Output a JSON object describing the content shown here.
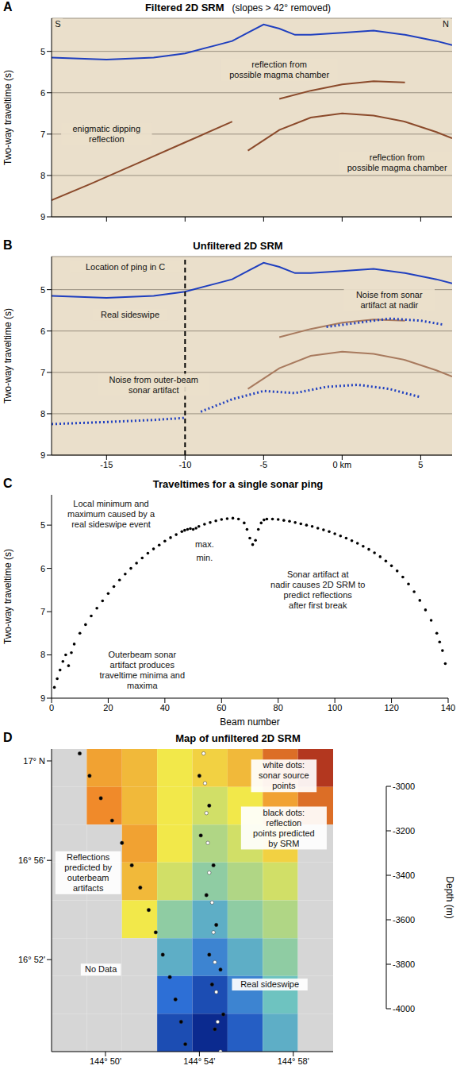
{
  "chart_data": [
    {
      "panel": "A",
      "type": "line",
      "title": "Filtered 2D SRM",
      "subtitle": "(slopes > 42° removed)",
      "y_label": "Two-way traveltime (s)",
      "xlim": [
        -18.5,
        7
      ],
      "xticks": [
        -15,
        -10,
        -5,
        0,
        5
      ],
      "ylim": [
        4.2,
        9
      ],
      "yticks": [
        5,
        6,
        7,
        8,
        9
      ],
      "tick_labels": "y",
      "grid": true,
      "series": [
        {
          "color": "#1f3fbf",
          "line_style": "solid",
          "x": [
            -18.5,
            -15,
            -12,
            -10,
            -8,
            -7,
            -6,
            -5,
            -4,
            -3,
            -2,
            0,
            2,
            4,
            6,
            7
          ],
          "values": [
            5.15,
            5.2,
            5.15,
            5.05,
            4.85,
            4.75,
            4.55,
            4.35,
            4.45,
            4.6,
            4.6,
            4.55,
            4.5,
            4.6,
            4.75,
            4.85
          ]
        },
        {
          "color": "#8b4a2b",
          "line_style": "solid",
          "x": [
            -4,
            -2,
            0,
            2,
            4
          ],
          "values": [
            6.15,
            5.95,
            5.8,
            5.72,
            5.75
          ]
        },
        {
          "color": "#8b4a2b",
          "line_style": "solid",
          "x": [
            -6,
            -4,
            -2,
            0,
            2,
            4,
            6,
            7
          ],
          "values": [
            7.4,
            6.9,
            6.6,
            6.5,
            6.55,
            6.7,
            6.95,
            7.1
          ]
        },
        {
          "color": "#8b4a2b",
          "line_style": "solid",
          "x": [
            -18.5,
            -16,
            -13,
            -10,
            -7
          ],
          "values": [
            8.6,
            8.2,
            7.7,
            7.2,
            6.7
          ]
        }
      ],
      "annotations": [
        {
          "text": "S",
          "x": -18.1,
          "y": 4.35
        },
        {
          "text": "N",
          "x": 6.6,
          "y": 4.35
        },
        {
          "text": "reflection from possible magma chamber",
          "x": -4,
          "y": 5.45
        },
        {
          "text": "reflection from possible magma chamber",
          "x": 3.5,
          "y": 7.7
        },
        {
          "text": "enigmatic dipping reflection",
          "x": -15,
          "y": 7.0
        }
      ]
    },
    {
      "panel": "B",
      "type": "line",
      "title": "Unfiltered 2D SRM",
      "y_label": "Two-way traveltime (s)",
      "xlim": [
        -18.5,
        7
      ],
      "xticks": [
        -15,
        -10,
        -5,
        {
          "value": 0,
          "label": "0 km"
        },
        5
      ],
      "ylim": [
        4.2,
        9
      ],
      "yticks": [
        5,
        6,
        7,
        8,
        9
      ],
      "grid": true,
      "reference_x": -10,
      "series": [
        {
          "color": "#1f3fbf",
          "line_style": "solid",
          "x": [
            -18.5,
            -15,
            -12,
            -10,
            -8,
            -7,
            -6,
            -5,
            -4,
            -3,
            -2,
            0,
            2,
            4,
            6,
            7
          ],
          "values": [
            5.15,
            5.2,
            5.15,
            5.05,
            4.85,
            4.75,
            4.55,
            4.35,
            4.45,
            4.6,
            4.6,
            4.55,
            4.5,
            4.6,
            4.75,
            4.85
          ]
        },
        {
          "color": "#a87a5e",
          "line_style": "solid",
          "x": [
            -4,
            -2,
            0,
            2,
            4
          ],
          "values": [
            6.15,
            5.95,
            5.8,
            5.72,
            5.75
          ]
        },
        {
          "color": "#a87a5e",
          "line_style": "solid",
          "x": [
            -6,
            -4,
            -2,
            0,
            2,
            4,
            6,
            7
          ],
          "values": [
            7.4,
            6.9,
            6.6,
            6.5,
            6.55,
            6.7,
            6.95,
            7.1
          ]
        },
        {
          "color": "#2040c0",
          "line_style": "dotted",
          "x": [
            -1,
            1,
            3,
            5,
            6.5
          ],
          "values": [
            5.9,
            5.8,
            5.7,
            5.75,
            5.85
          ]
        },
        {
          "color": "#2040c0",
          "line_style": "dotted",
          "x": [
            -18.5,
            -15,
            -12,
            -10
          ],
          "values": [
            8.25,
            8.2,
            8.15,
            8.1
          ]
        },
        {
          "color": "#2040c0",
          "line_style": "dotted",
          "x": [
            -9,
            -7,
            -5,
            -3,
            -1,
            1,
            3,
            5
          ],
          "values": [
            7.95,
            7.65,
            7.45,
            7.5,
            7.35,
            7.3,
            7.4,
            7.6
          ]
        }
      ],
      "annotations": [
        {
          "text": "Location of ping in C",
          "x": -13.8,
          "y": 4.45
        },
        {
          "text": "Real sideswipe",
          "x": -13.5,
          "y": 5.6
        },
        {
          "text": "Noise from sonar artifact at nadir",
          "x": 3,
          "y": 5.25
        },
        {
          "text": "Noise from outer-beam sonar artifact",
          "x": -12,
          "y": 7.3
        }
      ]
    },
    {
      "panel": "C",
      "type": "scatter",
      "title": "Traveltimes for a single sonar ping",
      "x_label": "Beam number",
      "y_label": "Two-way traveltime (s)",
      "xlim": [
        0,
        140
      ],
      "xticks": [
        0,
        20,
        40,
        60,
        80,
        100,
        120,
        140
      ],
      "ylim": [
        4.3,
        9
      ],
      "yticks": [
        5,
        6,
        7,
        8,
        9
      ],
      "series": [
        {
          "color": "#000000",
          "marker": "circle",
          "x": [
            1,
            2,
            3,
            4,
            5,
            6,
            7,
            8,
            10,
            12,
            14,
            16,
            18,
            20,
            22,
            24,
            26,
            28,
            30,
            32,
            34,
            36,
            38,
            40,
            42,
            44,
            46,
            47,
            48,
            49,
            50,
            51,
            52,
            54,
            56,
            58,
            60,
            62,
            64,
            66,
            68,
            69,
            70,
            71,
            72,
            73,
            74,
            75,
            76,
            78,
            80,
            82,
            84,
            86,
            88,
            90,
            92,
            94,
            96,
            98,
            100,
            102,
            104,
            106,
            108,
            110,
            112,
            114,
            116,
            118,
            120,
            122,
            124,
            126,
            128,
            130,
            132,
            134,
            136,
            137,
            138,
            139
          ],
          "values": [
            8.75,
            8.55,
            8.35,
            8.15,
            8.0,
            8.25,
            7.95,
            7.75,
            7.5,
            7.3,
            7.1,
            6.92,
            6.75,
            6.58,
            6.42,
            6.27,
            6.13,
            6.0,
            5.88,
            5.76,
            5.65,
            5.55,
            5.46,
            5.37,
            5.29,
            5.22,
            5.15,
            5.12,
            5.1,
            5.08,
            5.1,
            5.07,
            5.03,
            4.98,
            4.94,
            4.9,
            4.87,
            4.85,
            4.84,
            4.86,
            4.95,
            5.1,
            5.3,
            5.45,
            5.35,
            5.1,
            4.95,
            4.88,
            4.86,
            4.86,
            4.87,
            4.89,
            4.91,
            4.94,
            4.97,
            5.0,
            5.03,
            5.07,
            5.11,
            5.15,
            5.2,
            5.25,
            5.3,
            5.36,
            5.42,
            5.49,
            5.56,
            5.64,
            5.73,
            5.83,
            5.94,
            6.06,
            6.2,
            6.36,
            6.54,
            6.74,
            6.96,
            7.2,
            7.5,
            7.7,
            7.9,
            8.2
          ]
        }
      ],
      "annotations": [
        {
          "text": "Local minimum and maximum caused by a real sideswipe event",
          "x": 21,
          "y": 4.75
        },
        {
          "text": "max.",
          "x": 54,
          "y": 5.45
        },
        {
          "text": "min.",
          "x": 54,
          "y": 5.75
        },
        {
          "text": "Sonar artifact at nadir causes 2D SRM to predict reflections after first break",
          "x": 94,
          "y": 6.5
        },
        {
          "text": "Outerbeam sonar artifact produces traveltime minima and maxima",
          "x": 32,
          "y": 8.35
        }
      ]
    },
    {
      "panel": "D",
      "type": "heatmap",
      "title": "Map of unfiltered 2D SRM",
      "xlim": [
        144.795,
        144.995
      ],
      "xticks": [
        {
          "value": 144.8333,
          "label": "144° 50'"
        },
        {
          "value": 144.9,
          "label": "144° 54'"
        },
        {
          "value": 144.9667,
          "label": "144° 58'"
        }
      ],
      "ylim": [
        16.805,
        17.008
      ],
      "yticks": [
        {
          "value": 17,
          "label": "17° N"
        },
        {
          "value": 16.9333,
          "label": "16° 56'"
        },
        {
          "value": 16.8667,
          "label": "16° 52'"
        }
      ],
      "depth_grid": {
        "lon_edges": [
          144.795,
          144.82,
          144.845,
          144.87,
          144.895,
          144.92,
          144.945,
          144.97,
          144.995
        ],
        "lat_edges": [
          17.008,
          16.9826,
          16.9573,
          16.9319,
          16.9065,
          16.8811,
          16.8558,
          16.8304,
          16.805
        ],
        "values": [
          [
            null,
            -3250,
            -3300,
            -3400,
            -3350,
            -3300,
            -3150,
            -3050
          ],
          [
            null,
            -3200,
            -3300,
            -3400,
            -3450,
            -3400,
            -3250,
            -3150
          ],
          [
            null,
            null,
            -3250,
            -3400,
            -3500,
            -3450,
            -3350,
            null
          ],
          [
            null,
            null,
            -3300,
            -3450,
            -3550,
            -3500,
            -3450,
            null
          ],
          [
            null,
            null,
            -3400,
            -3550,
            -3650,
            -3550,
            -3500,
            null
          ],
          [
            null,
            null,
            null,
            -3650,
            -3750,
            -3650,
            -3550,
            null
          ],
          [
            null,
            null,
            null,
            -3800,
            -3900,
            -3750,
            -3600,
            null
          ],
          [
            null,
            null,
            null,
            -3900,
            -4000,
            -3850,
            -3650,
            null
          ]
        ]
      },
      "colorbar": {
        "range": [
          -4000,
          -3000
        ],
        "ticks": [
          -3000,
          -3200,
          -3400,
          -3600,
          -3800,
          -4000
        ],
        "label": "Depth (m)"
      },
      "series": [
        {
          "color": "#ffffff",
          "marker": "circle",
          "x": [
            144.903,
            144.904,
            144.905,
            144.906,
            144.907,
            144.909,
            144.91,
            144.911,
            144.912,
            144.913,
            144.915
          ],
          "values": [
            17.005,
            16.985,
            16.965,
            16.945,
            16.925,
            16.905,
            16.885,
            16.865,
            16.845,
            16.825,
            16.805
          ]
        },
        {
          "color": "#000000",
          "marker": "circle",
          "x": [
            144.815,
            144.822,
            144.83,
            144.838,
            144.845,
            144.852,
            144.858,
            144.864,
            144.869,
            144.874,
            144.879,
            144.883,
            144.887,
            144.89
          ],
          "values": [
            17.005,
            16.99,
            16.975,
            16.96,
            16.945,
            16.93,
            16.915,
            16.9,
            16.885,
            16.87,
            16.855,
            16.84,
            16.825,
            16.81
          ]
        },
        {
          "color": "#000000",
          "marker": "circle",
          "x": [
            144.9,
            144.907,
            144.901,
            144.91,
            144.905,
            144.912,
            144.907,
            144.915,
            144.909,
            144.917,
            144.911
          ],
          "values": [
            16.99,
            16.97,
            16.95,
            16.93,
            16.91,
            16.89,
            16.87,
            16.86,
            16.85,
            16.83,
            16.82
          ]
        }
      ],
      "annotations": [
        {
          "text": "white dots: sonar source points",
          "x": 144.96,
          "y": 16.99
        },
        {
          "text": "black dots: reflection points predicted by SRM",
          "x": 144.96,
          "y": 16.955
        },
        {
          "text": "Reflections predicted by outerbeam artifacts",
          "x": 144.821,
          "y": 16.925
        },
        {
          "text": "No Data",
          "x": 144.83,
          "y": 16.86
        },
        {
          "text": "Real sideswipe",
          "x": 144.95,
          "y": 16.85
        }
      ]
    }
  ]
}
